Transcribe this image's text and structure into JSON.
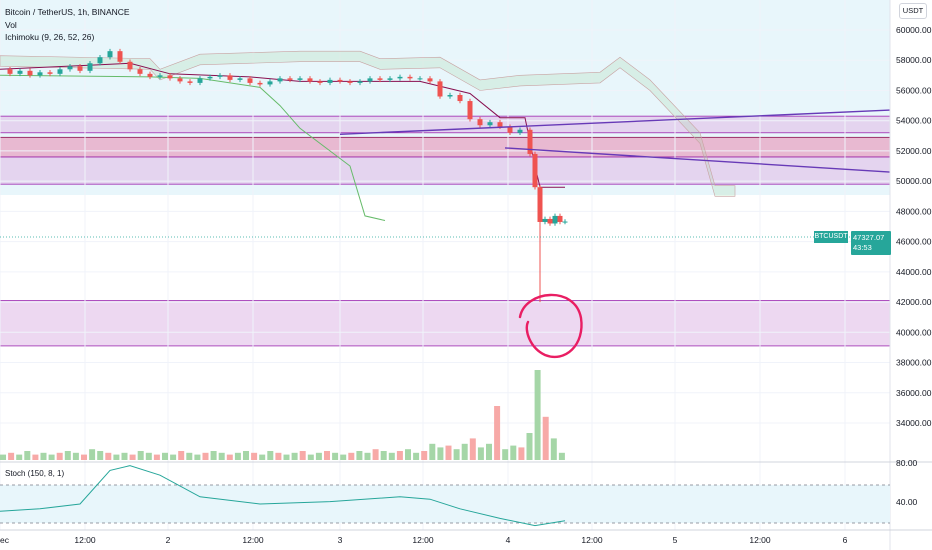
{
  "legend": {
    "title": "Bitcoin / TetherUS, 1h, BINANCE",
    "vol": "Vol",
    "ichimoku": "Ichimoku (9, 26, 52, 26)",
    "stoch": "Stoch (150, 8, 1)"
  },
  "axis": {
    "unit": "USDT"
  },
  "price_tag": {
    "symbol": "BTCUSDT",
    "price": "47327.07",
    "countdown": "43:53"
  },
  "colors": {
    "up": "#26a69a",
    "down": "#ef5350",
    "zone": "#e1bee7",
    "zone_dark": "#e91e63",
    "trend": "#673ab7",
    "circle": "#e91e63"
  },
  "chart_data": {
    "type": "line",
    "title": "Bitcoin / TetherUS, 1h, BINANCE",
    "y_ticks": [
      "60000.00",
      "58000.00",
      "56000.00",
      "54000.00",
      "52000.00",
      "50000.00",
      "48000.00",
      "46000.00",
      "44000.00",
      "42000.00",
      "40000.00",
      "38000.00",
      "36000.00",
      "34000.00"
    ],
    "ylim": [
      33500,
      61800
    ],
    "x_ticks": [
      "ec",
      "12:00",
      "2",
      "12:00",
      "3",
      "12:00",
      "4",
      "12:00",
      "5",
      "12:00",
      "6"
    ],
    "stoch_ticks": [
      "80.00",
      "40.00"
    ],
    "last_price": 47327.07,
    "price_series": [
      [
        0,
        57400
      ],
      [
        10,
        57100
      ],
      [
        20,
        57300
      ],
      [
        30,
        57000
      ],
      [
        40,
        57200
      ],
      [
        50,
        57100
      ],
      [
        60,
        57400
      ],
      [
        70,
        57600
      ],
      [
        80,
        57300
      ],
      [
        90,
        57800
      ],
      [
        100,
        58200
      ],
      [
        110,
        58600
      ],
      [
        120,
        57900
      ],
      [
        130,
        57400
      ],
      [
        140,
        57100
      ],
      [
        150,
        56900
      ],
      [
        160,
        57000
      ],
      [
        170,
        56800
      ],
      [
        180,
        56600
      ],
      [
        190,
        56500
      ],
      [
        200,
        56800
      ],
      [
        210,
        56900
      ],
      [
        220,
        57000
      ],
      [
        230,
        56700
      ],
      [
        240,
        56800
      ],
      [
        250,
        56500
      ],
      [
        260,
        56400
      ],
      [
        270,
        56600
      ],
      [
        280,
        56800
      ],
      [
        290,
        56700
      ],
      [
        300,
        56800
      ],
      [
        310,
        56600
      ],
      [
        320,
        56500
      ],
      [
        330,
        56700
      ],
      [
        340,
        56600
      ],
      [
        350,
        56500
      ],
      [
        360,
        56600
      ],
      [
        370,
        56800
      ],
      [
        380,
        56700
      ],
      [
        390,
        56800
      ],
      [
        400,
        56900
      ],
      [
        410,
        56800
      ],
      [
        420,
        56800
      ],
      [
        430,
        56600
      ],
      [
        440,
        55600
      ],
      [
        450,
        55700
      ],
      [
        460,
        55300
      ],
      [
        470,
        54100
      ],
      [
        480,
        53700
      ],
      [
        490,
        53900
      ],
      [
        500,
        53600
      ],
      [
        510,
        53200
      ],
      [
        520,
        53400
      ],
      [
        530,
        51800
      ],
      [
        535,
        49600
      ],
      [
        540,
        47300
      ],
      [
        545,
        47500
      ],
      [
        550,
        47200
      ],
      [
        555,
        47700
      ],
      [
        560,
        47300
      ],
      [
        565,
        47327
      ]
    ],
    "wick_low": 42000,
    "zones": [
      {
        "from": 53200,
        "to": 54300
      },
      {
        "from": 51600,
        "to": 52900
      },
      {
        "from": 49800,
        "to": 51600
      },
      {
        "from": 39100,
        "to": 42100
      }
    ],
    "cloud": [
      [
        0,
        57600
      ],
      [
        150,
        57400
      ],
      [
        160,
        56700
      ],
      [
        200,
        57700
      ],
      [
        300,
        57900
      ],
      [
        360,
        57900
      ],
      [
        380,
        57400
      ],
      [
        440,
        57500
      ],
      [
        480,
        56000
      ],
      [
        520,
        56300
      ],
      [
        600,
        56500
      ],
      [
        620,
        57500
      ],
      [
        650,
        56000
      ],
      [
        700,
        52500
      ],
      [
        715,
        49000
      ],
      [
        735,
        49000
      ]
    ],
    "lagging_span": [
      [
        0,
        57000
      ],
      [
        150,
        56900
      ],
      [
        200,
        56800
      ],
      [
        260,
        56200
      ],
      [
        280,
        55000
      ],
      [
        300,
        53500
      ],
      [
        320,
        52500
      ],
      [
        350,
        51000
      ],
      [
        365,
        47700
      ],
      [
        385,
        47400
      ]
    ],
    "base_line": [
      [
        0,
        57400
      ],
      [
        100,
        57700
      ],
      [
        130,
        57800
      ],
      [
        170,
        57100
      ],
      [
        250,
        56900
      ],
      [
        300,
        56600
      ],
      [
        420,
        56600
      ],
      [
        470,
        55800
      ],
      [
        500,
        54200
      ],
      [
        525,
        54200
      ],
      [
        535,
        51000
      ],
      [
        540,
        49600
      ],
      [
        565,
        49600
      ]
    ],
    "trendlines": [
      {
        "from": [
          340,
          53100
        ],
        "to": [
          890,
          54700
        ]
      },
      {
        "from": [
          505,
          52200
        ],
        "to": [
          890,
          50600
        ]
      }
    ],
    "volume": [
      3,
      4,
      3,
      5,
      3,
      4,
      3,
      4,
      5,
      4,
      3,
      6,
      5,
      4,
      3,
      4,
      3,
      5,
      4,
      3,
      4,
      3,
      5,
      4,
      3,
      4,
      5,
      4,
      3,
      4,
      5,
      4,
      3,
      5,
      4,
      3,
      4,
      5,
      3,
      4,
      5,
      4,
      3,
      4,
      5,
      4,
      6,
      5,
      4,
      5,
      6,
      4,
      5,
      9,
      7,
      8,
      6,
      9,
      12,
      7,
      9,
      30,
      6,
      8,
      7,
      15,
      50,
      24,
      12,
      4
    ],
    "stoch": [
      [
        0,
        7
      ],
      [
        40,
        8
      ],
      [
        80,
        10
      ],
      [
        110,
        24
      ],
      [
        130,
        26
      ],
      [
        160,
        22
      ],
      [
        200,
        13
      ],
      [
        260,
        10
      ],
      [
        330,
        11
      ],
      [
        400,
        13
      ],
      [
        430,
        12
      ],
      [
        460,
        8
      ],
      [
        500,
        4
      ],
      [
        535,
        1
      ],
      [
        565,
        3
      ]
    ],
    "annotation": "hand-drawn circle at wick low"
  }
}
